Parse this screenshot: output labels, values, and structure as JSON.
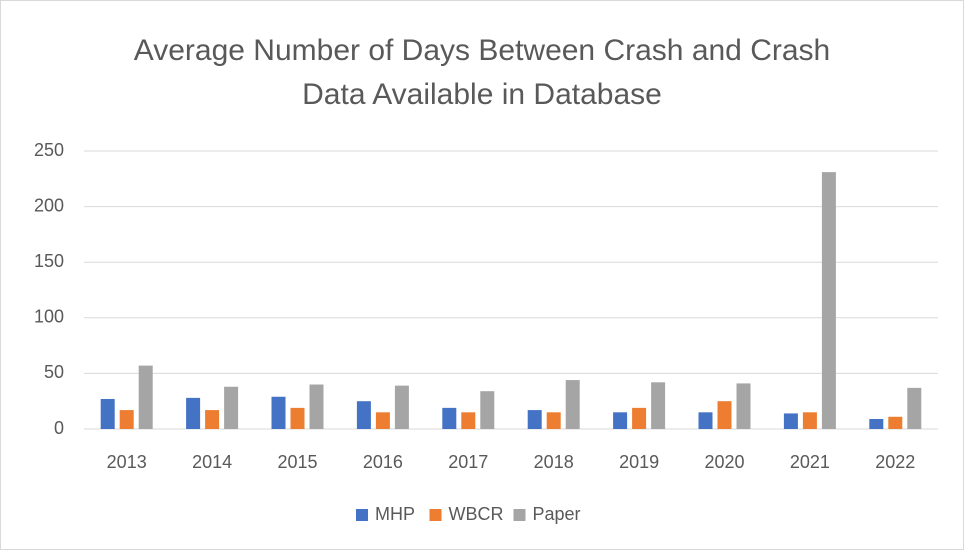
{
  "chart_data": {
    "type": "bar",
    "title": "Average Number of Days Between Crash and Crash Data Available in Database",
    "categories": [
      "2013",
      "2014",
      "2015",
      "2016",
      "2017",
      "2018",
      "2019",
      "2020",
      "2021",
      "2022"
    ],
    "series": [
      {
        "name": "MHP",
        "color": "#4472c4",
        "values": [
          27,
          28,
          29,
          25,
          19,
          17,
          15,
          15,
          14,
          9
        ]
      },
      {
        "name": "WBCR",
        "color": "#ed7d31",
        "values": [
          17,
          17,
          19,
          15,
          15,
          15,
          19,
          25,
          15,
          11
        ]
      },
      {
        "name": "Paper",
        "color": "#a5a5a5",
        "values": [
          57,
          38,
          40,
          39,
          34,
          44,
          42,
          41,
          231,
          37
        ]
      }
    ],
    "ylim": [
      0,
      250
    ],
    "yticks": [
      0,
      50,
      100,
      150,
      200,
      250
    ],
    "grid": true,
    "legend": "bottom"
  }
}
